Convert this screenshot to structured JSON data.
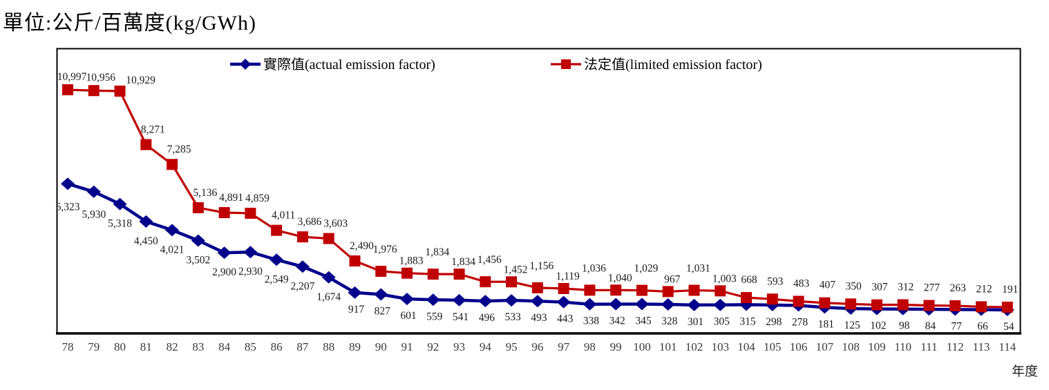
{
  "title": "單位:公斤/百萬度(kg/GWh)",
  "x_axis_title": "年度",
  "legend": {
    "actual_label": "實際值(actual emission factor)",
    "limited_label": "法定值(limited emission factor)"
  },
  "colors": {
    "actual": "#00008c",
    "limited": "#c00000",
    "axis": "#000000",
    "tick_text": "#3a3a3a",
    "label_text": "#1a1a1a"
  },
  "chart_data": {
    "type": "line",
    "title": "單位:公斤/百萬度(kg/GWh)",
    "xlabel": "年度",
    "ylabel": "公斤/百萬度(kg/GWh)",
    "x": [
      78,
      79,
      80,
      81,
      82,
      83,
      84,
      85,
      86,
      87,
      88,
      89,
      90,
      91,
      92,
      93,
      94,
      95,
      96,
      97,
      98,
      99,
      100,
      101,
      102,
      103,
      104,
      105,
      106,
      107,
      108,
      109,
      110,
      111,
      112,
      113,
      114
    ],
    "series": [
      {
        "name": "實際值(actual emission factor)",
        "marker": "diamond",
        "color": "#00008c",
        "values": [
          6323,
          5930,
          5318,
          4450,
          4021,
          3502,
          2900,
          2930,
          2549,
          2207,
          1674,
          917,
          827,
          601,
          559,
          541,
          496,
          533,
          493,
          443,
          338,
          342,
          345,
          328,
          301,
          305,
          315,
          298,
          278,
          181,
          125,
          102,
          98,
          84,
          77,
          66,
          54
        ]
      },
      {
        "name": "法定值(limited emission factor)",
        "marker": "square",
        "color": "#c00000",
        "values": [
          10997,
          10956,
          10929,
          8271,
          7285,
          5136,
          4891,
          4859,
          4011,
          3686,
          3603,
          2490,
          1976,
          1883,
          1834,
          1834,
          1456,
          1452,
          1156,
          1119,
          1036,
          1040,
          1029,
          967,
          1031,
          1003,
          668,
          593,
          483,
          407,
          350,
          307,
          312,
          277,
          263,
          212,
          191
        ]
      }
    ],
    "ylim": [
      0,
      13000
    ],
    "grid": false,
    "legend_position": "top-center",
    "data_labels": true
  }
}
